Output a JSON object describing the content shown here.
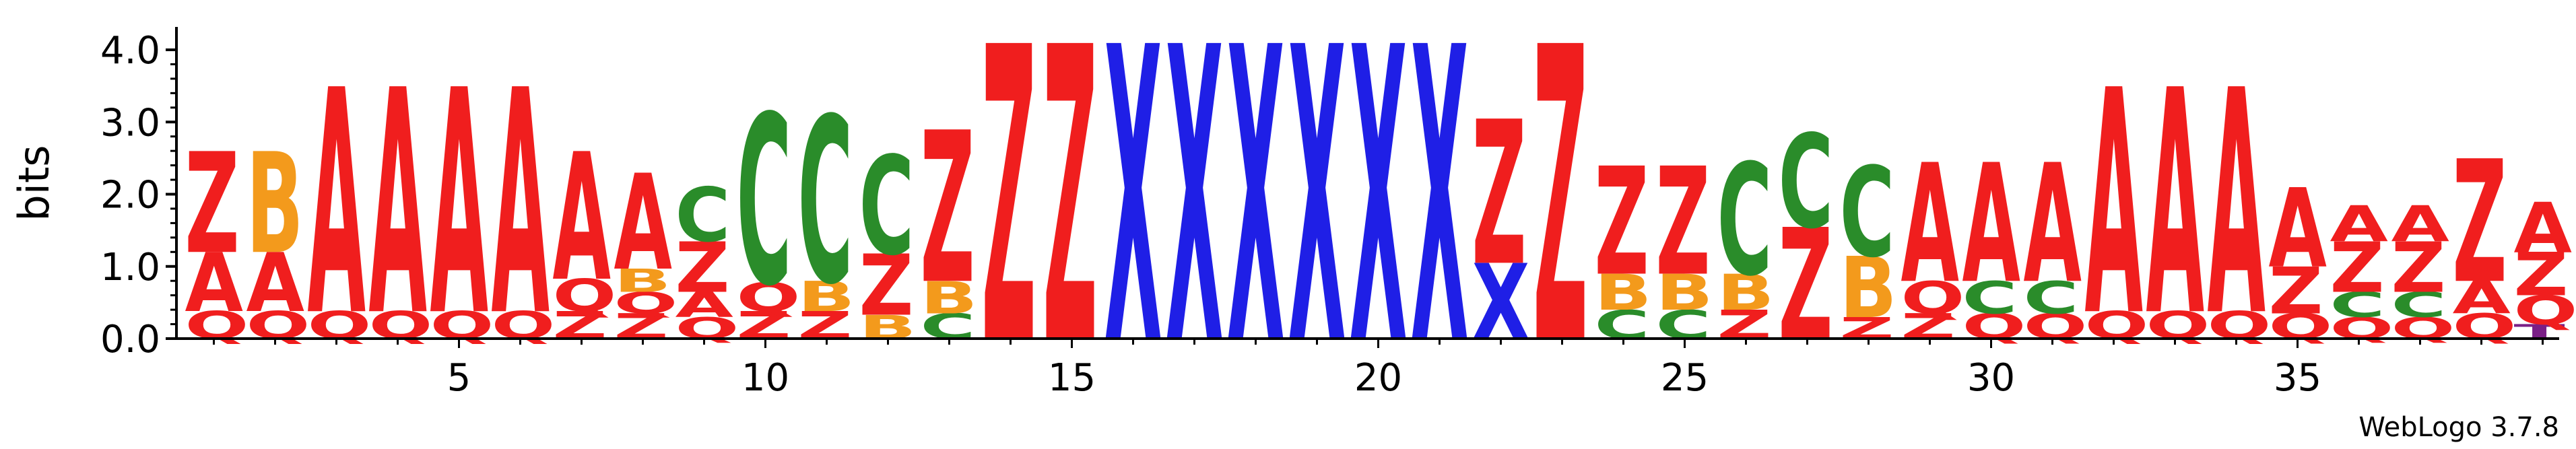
{
  "chart_data": {
    "type": "sequence-logo",
    "ylabel": "bits",
    "ylim": [
      0,
      4.0
    ],
    "y_ticks": [
      "0.0",
      "1.0",
      "2.0",
      "3.0",
      "4.0"
    ],
    "x_tick_labels": [
      "5",
      "10",
      "15",
      "20",
      "25",
      "30",
      "35"
    ],
    "x_tick_values": [
      5,
      10,
      15,
      20,
      25,
      30,
      35
    ],
    "footer": "WebLogo 3.7.8",
    "colors": {
      "A": "#f01e1e",
      "Q": "#f01e1e",
      "Z": "#f01e1e",
      "B": "#f39a1c",
      "C": "#2a8c2a",
      "X": "#1f1fe6",
      "T": "#7a1f86"
    },
    "positions": [
      {
        "pos": 1,
        "stack": [
          [
            "Q",
            0.38
          ],
          [
            "A",
            0.82
          ],
          [
            "Z",
            1.4
          ]
        ]
      },
      {
        "pos": 2,
        "stack": [
          [
            "Q",
            0.38
          ],
          [
            "A",
            0.82
          ],
          [
            "B",
            1.4
          ]
        ]
      },
      {
        "pos": 3,
        "stack": [
          [
            "Q",
            0.38
          ],
          [
            "A",
            3.12
          ]
        ]
      },
      {
        "pos": 4,
        "stack": [
          [
            "Q",
            0.38
          ],
          [
            "A",
            3.12
          ]
        ]
      },
      {
        "pos": 5,
        "stack": [
          [
            "Q",
            0.38
          ],
          [
            "A",
            3.12
          ]
        ]
      },
      {
        "pos": 6,
        "stack": [
          [
            "Q",
            0.38
          ],
          [
            "A",
            3.12
          ]
        ]
      },
      {
        "pos": 7,
        "stack": [
          [
            "Z",
            0.38
          ],
          [
            "Q",
            0.45
          ],
          [
            "A",
            1.77
          ]
        ]
      },
      {
        "pos": 8,
        "stack": [
          [
            "Z",
            0.35
          ],
          [
            "Q",
            0.3
          ],
          [
            "B",
            0.32
          ],
          [
            "A",
            1.33
          ]
        ]
      },
      {
        "pos": 9,
        "stack": [
          [
            "Q",
            0.3
          ],
          [
            "A",
            0.35
          ],
          [
            "Z",
            0.7
          ],
          [
            "C",
            0.75
          ]
        ]
      },
      {
        "pos": 10,
        "stack": [
          [
            "Z",
            0.38
          ],
          [
            "Q",
            0.4
          ],
          [
            "C",
            2.35
          ]
        ]
      },
      {
        "pos": 11,
        "stack": [
          [
            "Z",
            0.38
          ],
          [
            "B",
            0.42
          ],
          [
            "C",
            2.3
          ]
        ]
      },
      {
        "pos": 12,
        "stack": [
          [
            "B",
            0.33
          ],
          [
            "Z",
            0.85
          ],
          [
            "C",
            1.37
          ]
        ]
      },
      {
        "pos": 13,
        "stack": [
          [
            "C",
            0.35
          ],
          [
            "B",
            0.45
          ],
          [
            "Z",
            2.1
          ]
        ]
      },
      {
        "pos": 14,
        "stack": [
          [
            "Z",
            4.1
          ]
        ]
      },
      {
        "pos": 15,
        "stack": [
          [
            "Z",
            4.1
          ]
        ]
      },
      {
        "pos": 16,
        "stack": [
          [
            "X",
            4.1
          ]
        ]
      },
      {
        "pos": 17,
        "stack": [
          [
            "X",
            4.1
          ]
        ]
      },
      {
        "pos": 18,
        "stack": [
          [
            "X",
            4.1
          ]
        ]
      },
      {
        "pos": 19,
        "stack": [
          [
            "X",
            4.1
          ]
        ]
      },
      {
        "pos": 20,
        "stack": [
          [
            "X",
            4.1
          ]
        ]
      },
      {
        "pos": 21,
        "stack": [
          [
            "X",
            4.1
          ]
        ]
      },
      {
        "pos": 22,
        "stack": [
          [
            "X",
            1.05
          ],
          [
            "Z",
            2.0
          ]
        ]
      },
      {
        "pos": 23,
        "stack": [
          [
            "Z",
            4.1
          ]
        ]
      },
      {
        "pos": 24,
        "stack": [
          [
            "C",
            0.4
          ],
          [
            "B",
            0.5
          ],
          [
            "Z",
            1.5
          ]
        ]
      },
      {
        "pos": 25,
        "stack": [
          [
            "C",
            0.4
          ],
          [
            "B",
            0.5
          ],
          [
            "Z",
            1.5
          ]
        ]
      },
      {
        "pos": 26,
        "stack": [
          [
            "Z",
            0.4
          ],
          [
            "B",
            0.5
          ],
          [
            "C",
            1.55
          ]
        ]
      },
      {
        "pos": 27,
        "stack": [
          [
            "Z",
            1.55
          ],
          [
            "C",
            1.3
          ]
        ]
      },
      {
        "pos": 28,
        "stack": [
          [
            "Z",
            0.3
          ],
          [
            "B",
            0.85
          ],
          [
            "C",
            1.25
          ]
        ]
      },
      {
        "pos": 29,
        "stack": [
          [
            "Z",
            0.35
          ],
          [
            "Q",
            0.45
          ],
          [
            "A",
            1.65
          ]
        ]
      },
      {
        "pos": 30,
        "stack": [
          [
            "Q",
            0.35
          ],
          [
            "C",
            0.45
          ],
          [
            "A",
            1.65
          ]
        ]
      },
      {
        "pos": 31,
        "stack": [
          [
            "Q",
            0.35
          ],
          [
            "C",
            0.45
          ],
          [
            "A",
            1.65
          ]
        ]
      },
      {
        "pos": 32,
        "stack": [
          [
            "Q",
            0.38
          ],
          [
            "A",
            3.12
          ]
        ]
      },
      {
        "pos": 33,
        "stack": [
          [
            "Q",
            0.38
          ],
          [
            "A",
            3.12
          ]
        ]
      },
      {
        "pos": 34,
        "stack": [
          [
            "Q",
            0.38
          ],
          [
            "A",
            3.12
          ]
        ]
      },
      {
        "pos": 35,
        "stack": [
          [
            "Q",
            0.35
          ],
          [
            "Z",
            0.65
          ],
          [
            "A",
            1.1
          ]
        ]
      },
      {
        "pos": 36,
        "stack": [
          [
            "Q",
            0.3
          ],
          [
            "C",
            0.35
          ],
          [
            "Z",
            0.7
          ],
          [
            "A",
            0.5
          ]
        ]
      },
      {
        "pos": 37,
        "stack": [
          [
            "Q",
            0.3
          ],
          [
            "C",
            0.35
          ],
          [
            "Z",
            0.7
          ],
          [
            "A",
            0.5
          ]
        ]
      },
      {
        "pos": 38,
        "stack": [
          [
            "Q",
            0.35
          ],
          [
            "A",
            0.45
          ],
          [
            "Z",
            1.7
          ]
        ]
      },
      {
        "pos": 39,
        "stack": [
          [
            "T",
            0.2
          ],
          [
            "Q",
            0.4
          ],
          [
            "Z",
            0.6
          ],
          [
            "A",
            0.7
          ]
        ]
      }
    ]
  }
}
